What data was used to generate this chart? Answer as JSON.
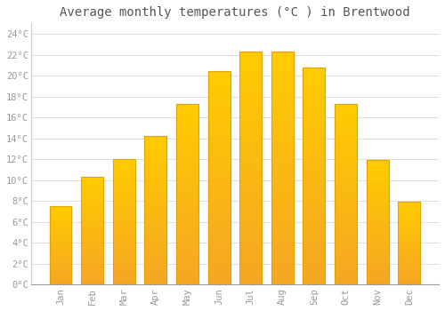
{
  "months": [
    "Jan",
    "Feb",
    "Mar",
    "Apr",
    "May",
    "Jun",
    "Jul",
    "Aug",
    "Sep",
    "Oct",
    "Nov",
    "Dec"
  ],
  "temperatures": [
    7.5,
    10.3,
    12.0,
    14.2,
    17.3,
    20.4,
    22.3,
    22.3,
    20.8,
    17.3,
    11.9,
    7.9
  ],
  "bar_color_top": "#FFCC00",
  "bar_color_bottom": "#F5A623",
  "background_color": "#FFFFFF",
  "title": "Average monthly temperatures (°C ) in Brentwood",
  "title_fontsize": 10,
  "ylim": [
    0,
    25
  ],
  "ytick_values": [
    0,
    2,
    4,
    6,
    8,
    10,
    12,
    14,
    16,
    18,
    20,
    22,
    24
  ],
  "ytick_labels": [
    "0°C",
    "2°C",
    "4°C",
    "6°C",
    "8°C",
    "10°C",
    "12°C",
    "14°C",
    "16°C",
    "18°C",
    "20°C",
    "22°C",
    "24°C"
  ],
  "grid_color": "#DDDDDD",
  "tick_label_fontsize": 7.5,
  "tick_label_color": "#999999",
  "title_color": "#555555",
  "font_family": "monospace",
  "bar_width": 0.7,
  "bar_edge_color": "#E8A000",
  "bar_edge_width": 0.8
}
